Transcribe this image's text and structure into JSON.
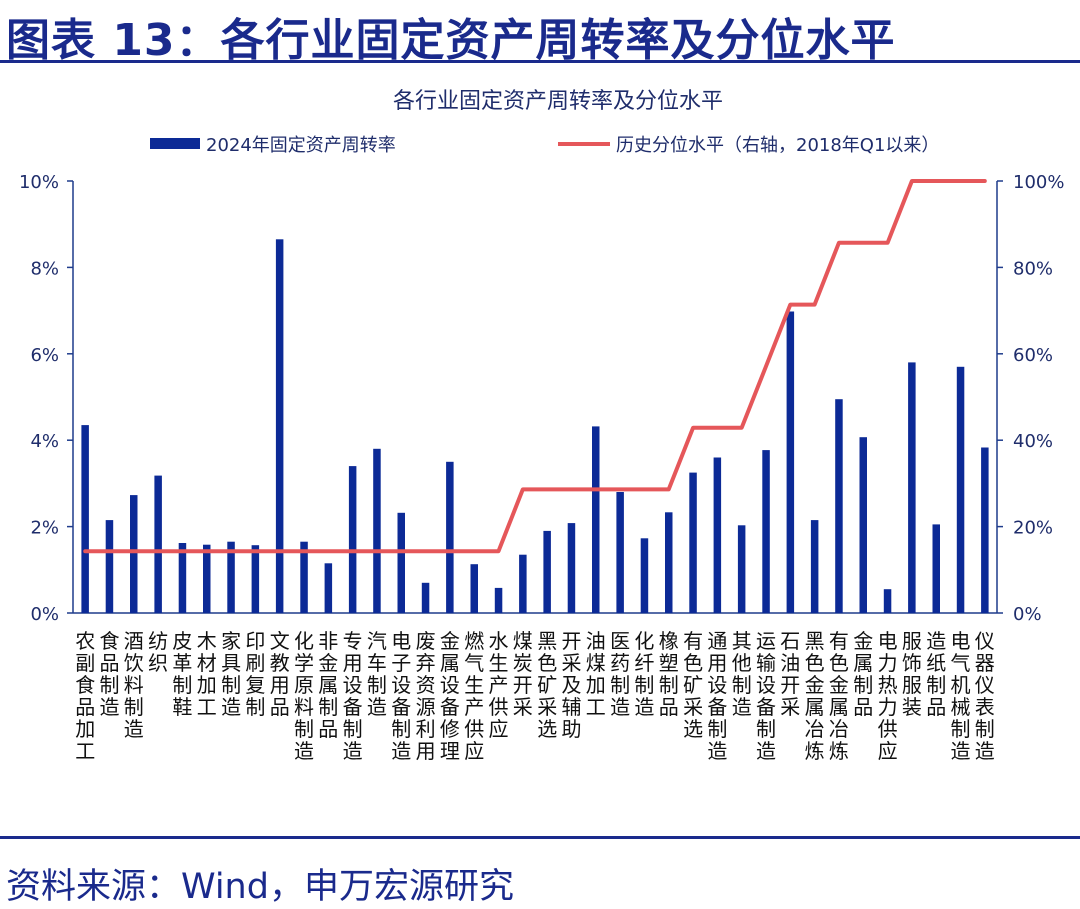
{
  "header": {
    "title": "图表 13：各行业固定资产周转率及分位水平"
  },
  "footer": {
    "source": "资料来源：Wind，申万宏源研究"
  },
  "colors": {
    "bar": "#0c2a96",
    "line": "#e5575a",
    "axis": "#1f3c8c",
    "text": "#1f2d6b"
  },
  "chart_data": {
    "type": "bar",
    "title": "各行业固定资产周转率及分位水平",
    "legend_position": "top",
    "grid": false,
    "categories": [
      "农副食品加工",
      "食品制造",
      "酒饮料制造",
      "纺织",
      "皮革制鞋",
      "木材加工",
      "家具制造",
      "印刷复制",
      "文教用品",
      "化学原料制造",
      "非金属制品",
      "专用设备制造",
      "汽车制造",
      "电子设备制造",
      "废弃资源利用",
      "金属设备修理",
      "燃气生产供应",
      "水生产供应",
      "煤炭开采",
      "黑色矿采选",
      "开采及辅助",
      "油煤加工",
      "医药制造",
      "化纤制造",
      "橡塑制品",
      "有色矿采选",
      "通用设备制造",
      "其他制造",
      "运输设备制造",
      "石油开采",
      "黑色金属冶炼",
      "有色金属冶炼",
      "金属制品",
      "电力热力供应",
      "服饰服装",
      "造纸制品",
      "电气机械制造",
      "仪器仪表制造"
    ],
    "series": [
      {
        "name": "2024年固定资产周转率",
        "type": "bar",
        "axis": "left",
        "values": [
          4.35,
          2.15,
          2.73,
          3.18,
          1.62,
          1.58,
          1.65,
          1.57,
          8.65,
          1.65,
          1.15,
          3.4,
          3.8,
          2.32,
          0.7,
          3.5,
          1.13,
          0.58,
          1.35,
          1.9,
          2.08,
          4.32,
          2.8,
          1.73,
          2.33,
          3.25,
          3.6,
          2.03,
          3.77,
          6.98,
          2.15,
          4.95,
          4.07,
          0.55,
          5.8,
          2.05,
          5.7,
          3.83
        ]
      },
      {
        "name": "历史分位水平（右轴，2018年Q1以来）",
        "type": "line",
        "axis": "right",
        "values": [
          14.3,
          14.3,
          14.3,
          14.3,
          14.3,
          14.3,
          14.3,
          14.3,
          14.3,
          14.3,
          14.3,
          14.3,
          14.3,
          14.3,
          14.3,
          14.3,
          14.3,
          14.3,
          28.6,
          28.6,
          28.6,
          28.6,
          28.6,
          28.6,
          28.6,
          42.9,
          42.9,
          42.9,
          57.1,
          71.4,
          71.4,
          85.7,
          85.7,
          85.7,
          100,
          100,
          100,
          100
        ]
      }
    ],
    "y_left": {
      "min": 0,
      "max": 10,
      "ticks": [
        "0%",
        "2%",
        "4%",
        "6%",
        "8%",
        "10%"
      ]
    },
    "y_right": {
      "min": 0,
      "max": 100,
      "ticks": [
        "0%",
        "20%",
        "40%",
        "60%",
        "80%",
        "100%"
      ]
    }
  }
}
